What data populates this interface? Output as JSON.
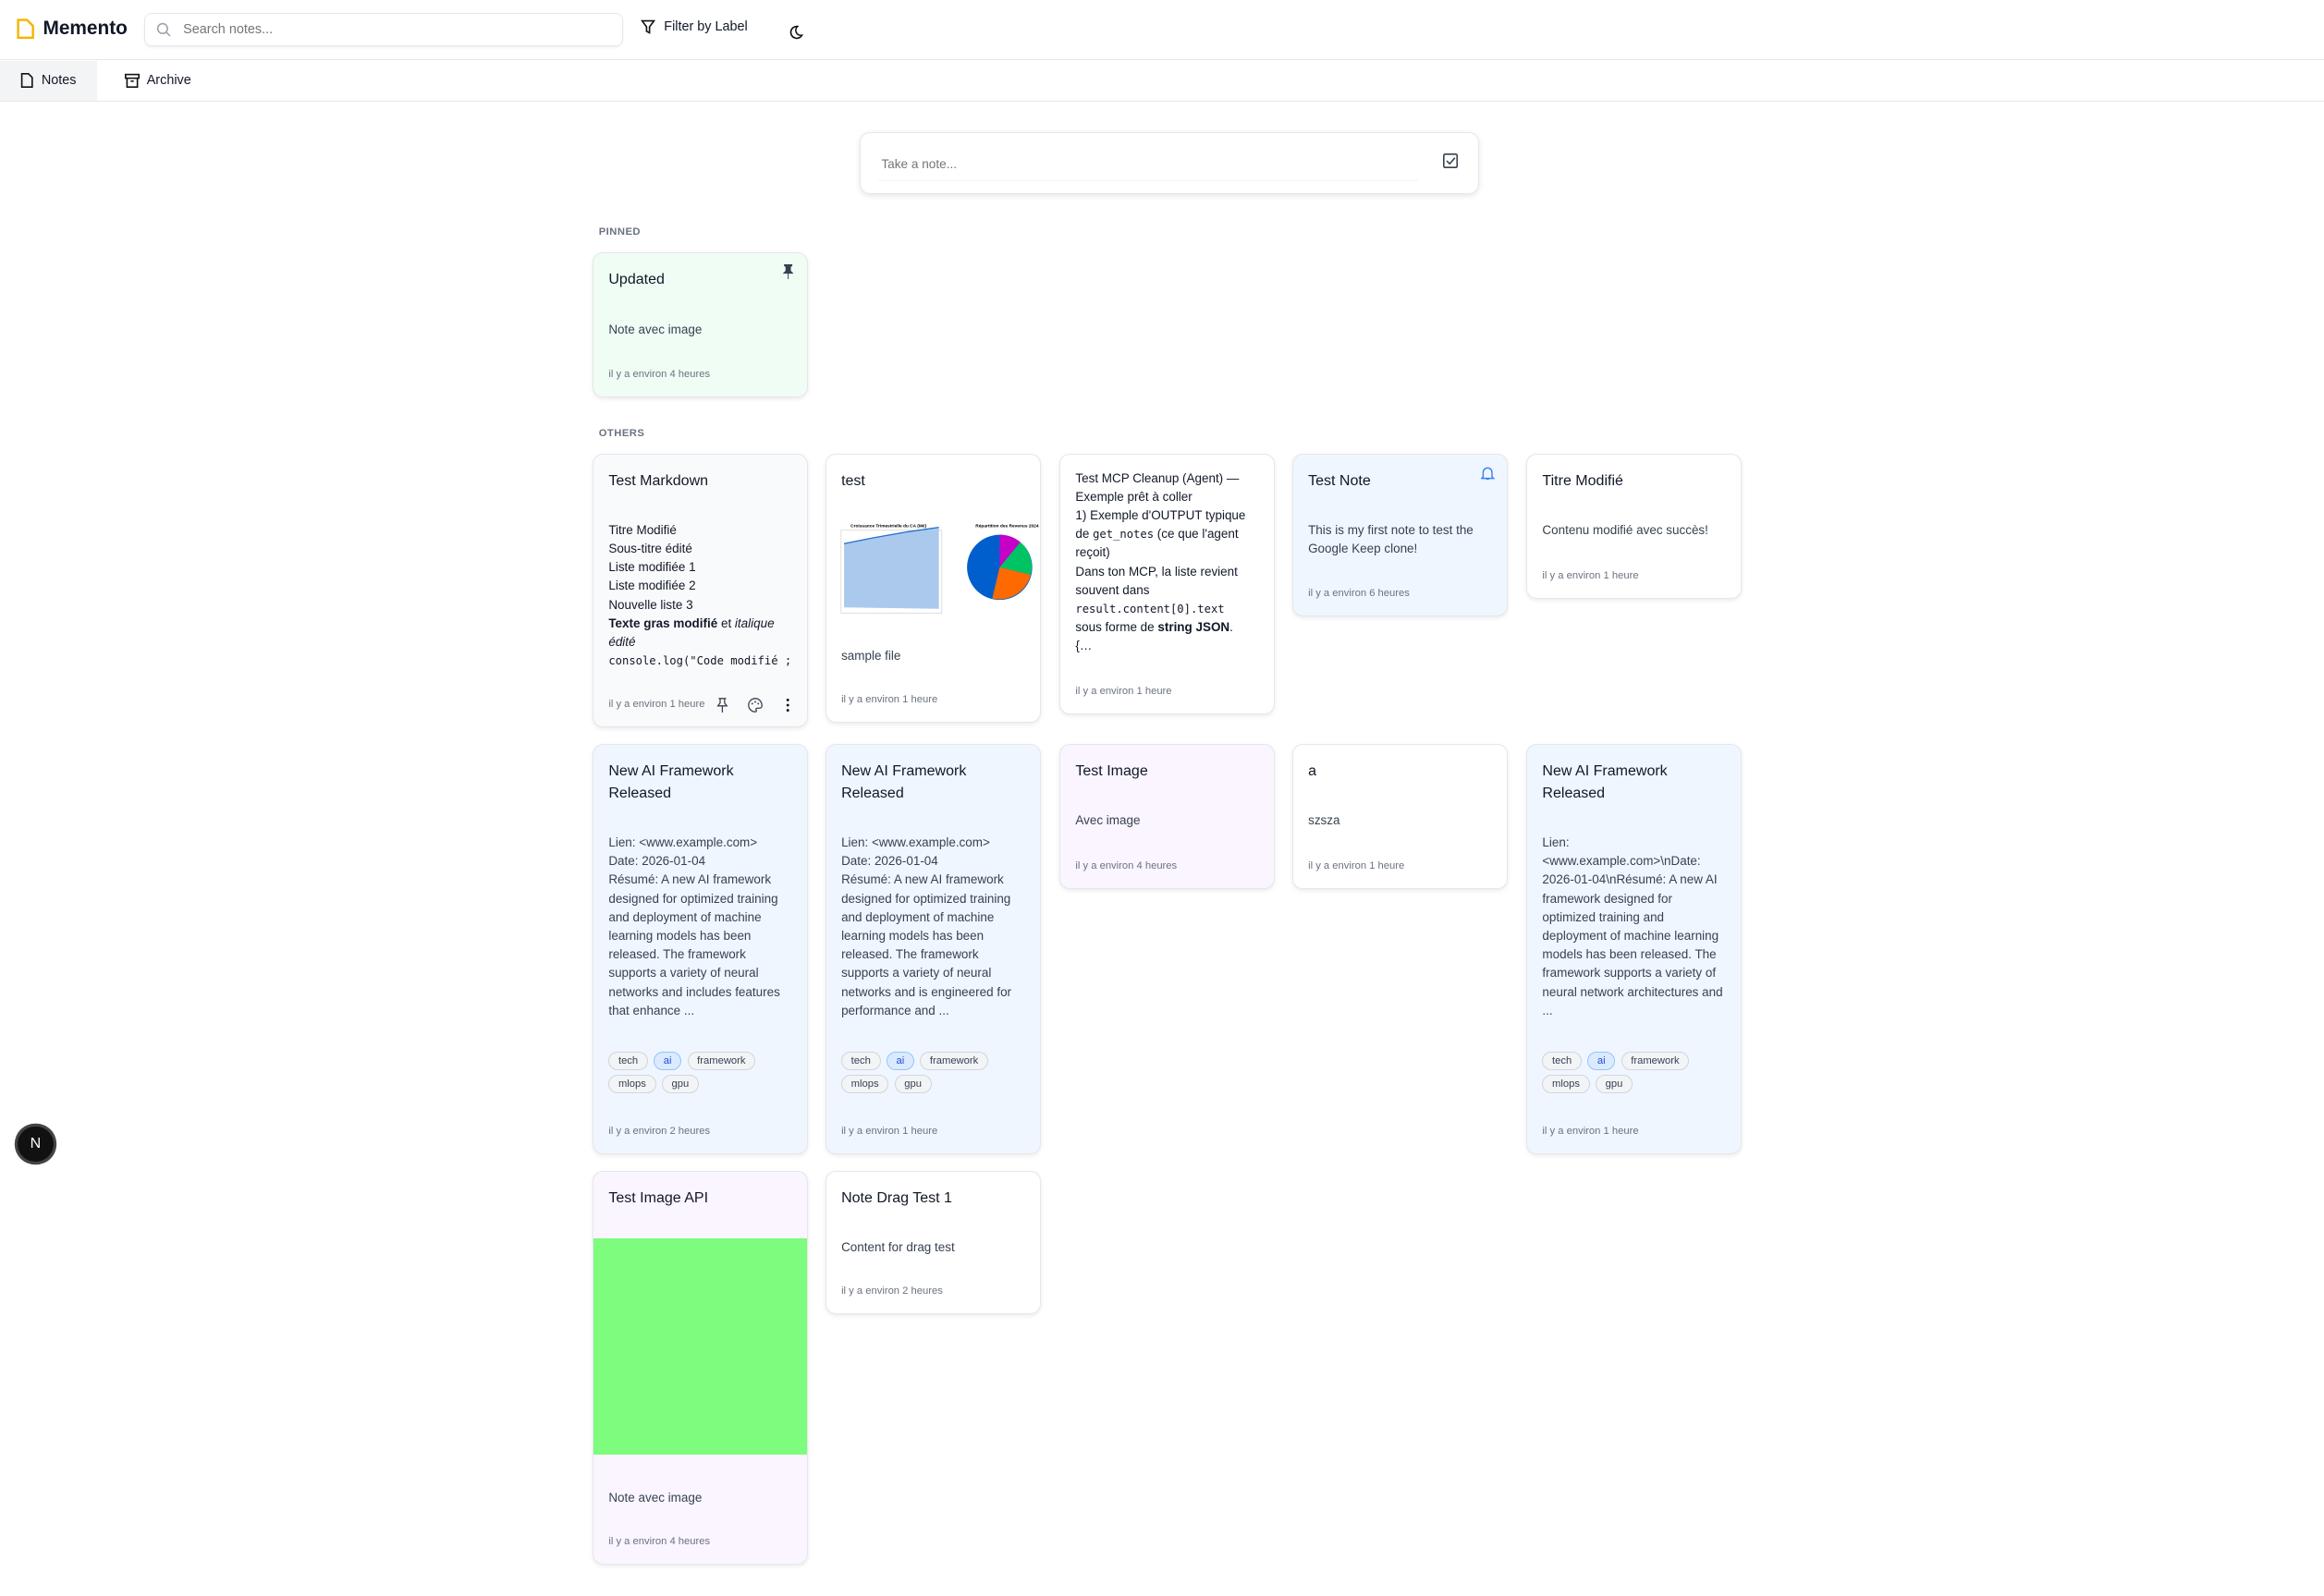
{
  "app": {
    "title": "Memento",
    "brand_color": "#f5b400"
  },
  "search": {
    "placeholder": "Search notes..."
  },
  "header": {
    "filter_label": "Filter by Label",
    "theme_icon": "moon-icon"
  },
  "tabs": [
    {
      "label": "Notes",
      "active": true
    },
    {
      "label": "Archive",
      "active": false
    }
  ],
  "composer": {
    "placeholder": "Take a note..."
  },
  "sections": {
    "pinned": "PINNED",
    "others": "OTHERS"
  },
  "pinned": [
    {
      "title": "Updated",
      "body": "Note avec image",
      "time": "il y a environ 4 heures",
      "color": "#f0fdf4"
    }
  ],
  "notes": {
    "markdown": {
      "title": "Test Markdown",
      "lines": [
        "Titre Modifié",
        "Sous-titre édité",
        "Liste modifiée 1",
        "Liste modifiée 2",
        "Nouvelle liste 3"
      ],
      "bold": "Texte gras modifié",
      "mid": " et ",
      "italic": "italique édité",
      "code": "console.log(\"Code modifié ;",
      "time": "il y a environ 1 heure"
    },
    "test": {
      "title": "test",
      "chart1_title": "Croissance Trimestrielle du CA (M€)",
      "chart2_title": "Répartition des Revenus 2024",
      "body": "sample file",
      "time": "il y a environ 1 heure"
    },
    "mcp": {
      "l1": "Test MCP Cleanup (Agent) — Exemple prêt à coller",
      "l2": "1) Exemple d'OUTPUT typique de ",
      "code1": "get_notes",
      "l2b": " (ce que l'agent reçoit)",
      "l3": "Dans ton MCP, la liste revient souvent dans",
      "code2": "result.content[0].text",
      "l4": "sous forme de ",
      "bold": "string JSON",
      "l4b": ".",
      "l5": "{…",
      "time": "il y a environ 1 heure"
    },
    "testnote": {
      "title": "Test Note",
      "body": "This is my first note to test the Google Keep clone!",
      "time": "il y a environ 6 heures",
      "color": "#eff6ff"
    },
    "titre": {
      "title": "Titre Modifié",
      "body": "Contenu modifié avec succès!",
      "time": "il y a environ 1 heure"
    },
    "ai1": {
      "title": "New AI Framework Released",
      "body": "Lien: <www.example.com>\nDate: 2026-01-04\nRésumé: A new AI framework designed for optimized training and deployment of machine learning models has been released. The framework supports a variety of neural networks and includes features that enhance ...",
      "time": "il y a environ 2 heures"
    },
    "ai2": {
      "title": "New AI Framework Released",
      "body": "Lien: <www.example.com>\nDate: 2026-01-04\nRésumé: A new AI framework designed for optimized training and deployment of machine learning models has been released. The framework supports a variety of neural networks and is engineered for performance and ...",
      "time": "il y a environ 1 heure"
    },
    "testimage": {
      "title": "Test Image",
      "body": "Avec image",
      "time": "il y a environ 4 heures",
      "color": "#faf5ff"
    },
    "a": {
      "title": "a",
      "body": "szsza",
      "time": "il y a environ 1 heure"
    },
    "ai3": {
      "title": "New AI Framework Released",
      "body": "Lien: <www.example.com>\\nDate: 2026-01-04\\nRésumé: A new AI framework designed for optimized training and deployment of machine learning models has been released. The framework supports a variety of neural network architectures and ...",
      "time": "il y a environ 1 heure"
    },
    "imageapi": {
      "title": "Test Image API",
      "body": "Note avec image",
      "time": "il y a environ 4 heures",
      "image_color": "#7dfc7d"
    },
    "drag": {
      "title": "Note Drag Test 1",
      "body": "Content for drag test",
      "time": "il y a environ 2 heures"
    }
  },
  "tags": [
    "tech",
    "ai",
    "framework",
    "mlops",
    "gpu"
  ],
  "fab": {
    "label": "N"
  }
}
